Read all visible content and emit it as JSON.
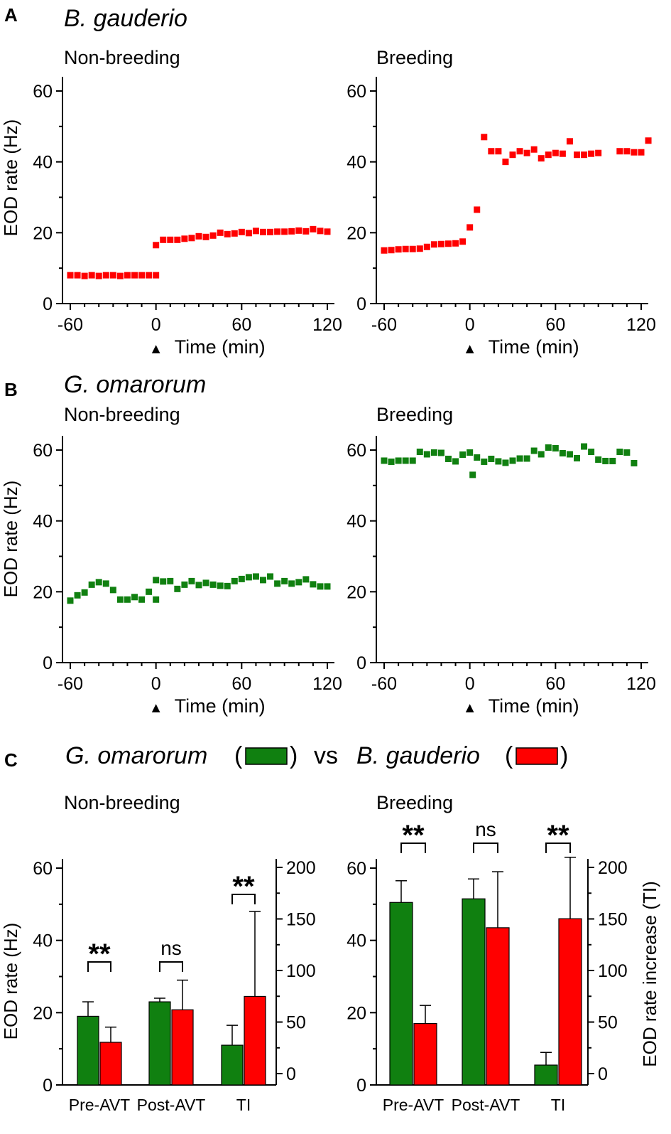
{
  "colors": {
    "green": "#108010",
    "red": "#ff0000"
  },
  "panels": {
    "A": {
      "letter": "A",
      "species": "B. gauderio",
      "nonbreeding_label": "Non-breeding",
      "breeding_label": "Breeding"
    },
    "B": {
      "letter": "B",
      "species": "G. omarorum",
      "nonbreeding_label": "Non-breeding",
      "breeding_label": "Breeding"
    },
    "C": {
      "letter": "C",
      "species_green": "G. omarorum",
      "species_red": "B. gauderio",
      "paren_open": "(",
      "paren_close": ")",
      "vs": "vs",
      "nonbreeding_label": "Non-breeding",
      "breeding_label": "Breeding"
    }
  },
  "axis_text": {
    "ylabel": "EOD rate (Hz)",
    "ylabel_right": "EOD rate increase (TI)",
    "xlabel": "Time (min)",
    "marker": "▲"
  },
  "chart_data": [
    {
      "id": "A-nonbreeding",
      "type": "scatter",
      "title": "Non-breeding",
      "xlabel": "Time (min)",
      "ylabel": "EOD rate (Hz)",
      "xlim": [
        -62,
        125
      ],
      "ylim": [
        0,
        60
      ],
      "xticks": [
        -60,
        0,
        60,
        120
      ],
      "yticks": [
        0,
        20,
        40,
        60
      ],
      "color": "red",
      "x": [
        -60,
        -55,
        -50,
        -45,
        -40,
        -35,
        -30,
        -25,
        -20,
        -15,
        -10,
        -5,
        0,
        0,
        5,
        10,
        15,
        20,
        25,
        30,
        35,
        40,
        45,
        50,
        55,
        60,
        65,
        70,
        75,
        80,
        85,
        90,
        95,
        100,
        105,
        110,
        115,
        120
      ],
      "y": [
        8,
        8,
        7.8,
        8,
        7.8,
        8,
        8,
        7.8,
        8,
        8,
        8,
        8,
        8,
        16.5,
        18,
        18,
        18,
        18.3,
        18.5,
        19,
        18.8,
        19.2,
        20,
        19.6,
        19.8,
        20.2,
        19.9,
        20.5,
        20.2,
        20.2,
        20.3,
        20.3,
        20.4,
        20.6,
        20.4,
        21,
        20.5,
        20.3
      ]
    },
    {
      "id": "A-breeding",
      "type": "scatter",
      "title": "Breeding",
      "xlabel": "Time (min)",
      "ylabel": "EOD rate (Hz)",
      "xlim": [
        -62,
        125
      ],
      "ylim": [
        0,
        60
      ],
      "xticks": [
        -60,
        0,
        60,
        120
      ],
      "yticks": [
        0,
        20,
        40,
        60
      ],
      "color": "red",
      "x": [
        -60,
        -55,
        -50,
        -45,
        -40,
        -35,
        -30,
        -25,
        -20,
        -15,
        -10,
        -5,
        0,
        5,
        10,
        15,
        20,
        25,
        30,
        35,
        40,
        45,
        50,
        55,
        60,
        65,
        70,
        75,
        80,
        85,
        90,
        105,
        110,
        115,
        120,
        125
      ],
      "y": [
        15,
        15.1,
        15.3,
        15.4,
        15.4,
        15.5,
        16,
        16.7,
        16.8,
        16.9,
        17,
        17.5,
        21.5,
        26.5,
        47,
        43,
        43,
        40,
        42,
        43,
        42.5,
        43.5,
        41,
        42,
        42.5,
        42.3,
        45.8,
        42,
        42,
        42.3,
        42.5,
        43,
        43,
        42.7,
        42.7,
        46
      ]
    },
    {
      "id": "B-nonbreeding",
      "type": "scatter",
      "title": "Non-breeding",
      "xlabel": "Time (min)",
      "ylabel": "EOD rate (Hz)",
      "xlim": [
        -62,
        125
      ],
      "ylim": [
        0,
        60
      ],
      "xticks": [
        -60,
        0,
        60,
        120
      ],
      "yticks": [
        0,
        20,
        40,
        60
      ],
      "color": "green",
      "x": [
        -60,
        -55,
        -50,
        -45,
        -40,
        -35,
        -30,
        -25,
        -20,
        -15,
        -10,
        -5,
        0,
        0,
        5,
        10,
        15,
        20,
        25,
        30,
        35,
        40,
        45,
        50,
        55,
        60,
        65,
        70,
        75,
        80,
        85,
        90,
        95,
        100,
        105,
        110,
        115,
        120
      ],
      "y": [
        17.5,
        19,
        19.8,
        22,
        22.7,
        22.3,
        20.5,
        17.8,
        17.8,
        18.5,
        17.8,
        20,
        17.8,
        23.3,
        22.9,
        23,
        20.8,
        22,
        23,
        21.9,
        22.5,
        22,
        21.7,
        21.6,
        23,
        23.6,
        24.1,
        24.3,
        23.3,
        24.3,
        22.3,
        23,
        22.3,
        22.7,
        23.5,
        22.1,
        21.5,
        21.5
      ]
    },
    {
      "id": "B-breeding",
      "type": "scatter",
      "title": "Breeding",
      "xlabel": "Time (min)",
      "ylabel": "EOD rate (Hz)",
      "xlim": [
        -62,
        125
      ],
      "ylim": [
        0,
        60
      ],
      "xticks": [
        -60,
        0,
        60,
        120
      ],
      "yticks": [
        0,
        20,
        40,
        60
      ],
      "color": "green",
      "x": [
        -60,
        -55,
        -50,
        -45,
        -40,
        -35,
        -30,
        -25,
        -20,
        -15,
        -10,
        -5,
        0,
        2,
        5,
        10,
        15,
        20,
        25,
        30,
        35,
        40,
        45,
        50,
        55,
        60,
        65,
        70,
        75,
        80,
        85,
        90,
        95,
        100,
        105,
        110,
        115
      ],
      "y": [
        57,
        56.7,
        57,
        57,
        57,
        59.5,
        58.8,
        59.3,
        59.2,
        57.5,
        56.8,
        58.7,
        59.3,
        53,
        57.9,
        56.7,
        57.5,
        56.8,
        56.4,
        57,
        57.6,
        57.6,
        59.8,
        58.8,
        60.7,
        60.5,
        59.1,
        58.8,
        57.7,
        61,
        59.5,
        57.3,
        56.9,
        56.9,
        59.5,
        59.3,
        56.3
      ]
    },
    {
      "id": "C-nonbreeding",
      "type": "bar",
      "title": "Non-breeding",
      "ylabel": "EOD rate (Hz)",
      "categories": [
        "Pre-AVT",
        "Post-AVT",
        "TI"
      ],
      "ylim": [
        0,
        60
      ],
      "yticks": [
        0,
        20,
        40,
        60
      ],
      "y2lim": [
        -11,
        200
      ],
      "y2ticks": [
        0,
        50,
        100,
        150,
        200
      ],
      "series": [
        {
          "name": "G. omarorum",
          "color": "green",
          "values": [
            19,
            23,
            11
          ],
          "errors": [
            23,
            24,
            16.5
          ]
        },
        {
          "name": "B. gauderio",
          "color": "red",
          "values": [
            11.8,
            20.8,
            24.5
          ],
          "errors": [
            16,
            29,
            48
          ]
        }
      ],
      "significance": [
        "**",
        "ns",
        "**"
      ]
    },
    {
      "id": "C-breeding",
      "type": "bar",
      "title": "Breeding",
      "ylabel": "EOD rate (Hz)",
      "y2label": "EOD rate increase (TI)",
      "categories": [
        "Pre-AVT",
        "Post-AVT",
        "TI"
      ],
      "ylim": [
        0,
        60
      ],
      "yticks": [
        0,
        20,
        40,
        60
      ],
      "y2lim": [
        -11,
        200
      ],
      "y2ticks": [
        0,
        50,
        100,
        150,
        200
      ],
      "series": [
        {
          "name": "G. omarorum",
          "color": "green",
          "values": [
            50.5,
            51.5,
            5.5
          ],
          "errors": [
            56.5,
            57,
            9
          ]
        },
        {
          "name": "B. gauderio",
          "color": "red",
          "values": [
            17,
            43.5,
            46
          ],
          "errors": [
            22,
            59,
            63
          ]
        }
      ],
      "significance": [
        "**",
        "ns",
        "**"
      ]
    }
  ]
}
